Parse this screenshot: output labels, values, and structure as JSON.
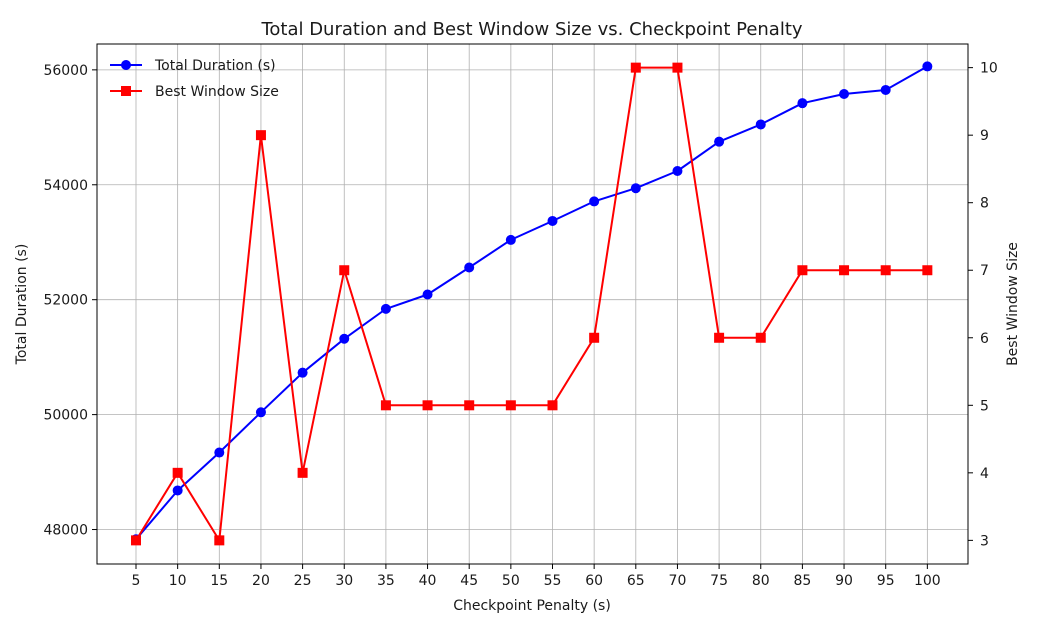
{
  "chart_data": {
    "type": "line",
    "title": "Total Duration and Best Window Size vs. Checkpoint Penalty",
    "xlabel": "Checkpoint Penalty (s)",
    "ylabel_left": "Total Duration (s)",
    "ylabel_right": "Best Window Size",
    "x": [
      5,
      10,
      15,
      20,
      25,
      30,
      35,
      40,
      45,
      50,
      55,
      60,
      65,
      70,
      75,
      80,
      85,
      90,
      95,
      100
    ],
    "x_tick_labels": [
      "5",
      "10",
      "15",
      "20",
      "25",
      "30",
      "35",
      "40",
      "45",
      "50",
      "55",
      "60",
      "65",
      "70",
      "75",
      "80",
      "85",
      "90",
      "95",
      "100"
    ],
    "ylim_left": [
      47400,
      56450
    ],
    "yticks_left": [
      48000,
      50000,
      52000,
      54000,
      56000
    ],
    "ylim_right": [
      2.65,
      10.35
    ],
    "yticks_right": [
      3,
      4,
      5,
      6,
      7,
      8,
      9,
      10
    ],
    "grid": true,
    "legend_position": "top-left",
    "series": [
      {
        "name": "Total Duration (s)",
        "axis": "left",
        "color": "#0000ff",
        "marker": "circle",
        "values": [
          47830,
          48680,
          49340,
          50040,
          50730,
          51320,
          51840,
          52090,
          52560,
          53040,
          53370,
          53710,
          53940,
          54240,
          54750,
          55050,
          55420,
          55580,
          55650,
          56060
        ]
      },
      {
        "name": "Best Window Size",
        "axis": "right",
        "color": "#ff0000",
        "marker": "square",
        "values": [
          3,
          4,
          3,
          9,
          4,
          7,
          5,
          5,
          5,
          5,
          5,
          6,
          10,
          10,
          6,
          6,
          7,
          7,
          7,
          7
        ]
      }
    ]
  }
}
